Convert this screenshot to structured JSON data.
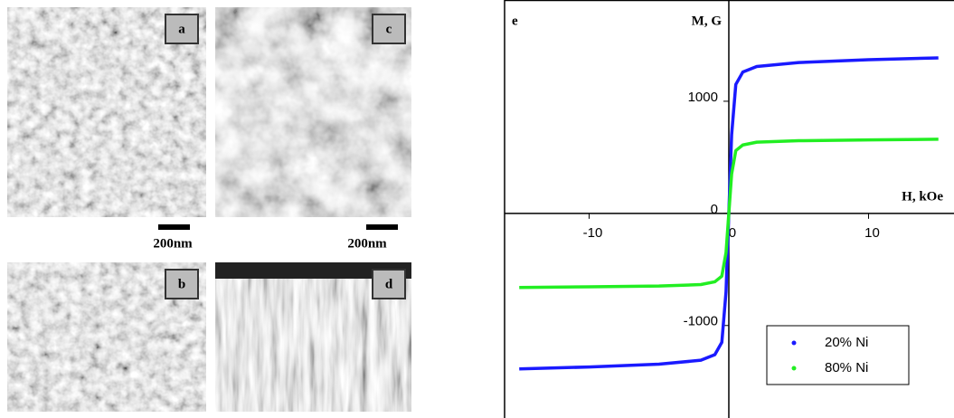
{
  "panels": [
    {
      "label": "a",
      "scale_bar": "200nm"
    },
    {
      "label": "b"
    },
    {
      "label": "c",
      "scale_bar": "200nm"
    },
    {
      "label": "d"
    }
  ],
  "chart_data": {
    "type": "line",
    "annotation": "e",
    "xlabel": "H, kOe",
    "ylabel": "M, G",
    "x": [
      -15,
      -10,
      -5,
      -2,
      -1,
      -0.5,
      -0.2,
      0,
      0.2,
      0.5,
      1,
      2,
      5,
      10,
      15
    ],
    "series": [
      {
        "name": "20% Ni",
        "color": "#1a1aff",
        "values": [
          -1387,
          -1370,
          -1345,
          -1310,
          -1260,
          -1150,
          -700,
          0,
          700,
          1150,
          1260,
          1310,
          1345,
          1370,
          1387
        ]
      },
      {
        "name": "80% Ni",
        "color": "#22ee22",
        "values": [
          -661,
          -655,
          -648,
          -635,
          -610,
          -560,
          -350,
          0,
          350,
          560,
          610,
          635,
          648,
          655,
          661
        ]
      }
    ],
    "xlim": [
      -16.05,
      15.47
    ],
    "ylim": [
      -1825,
      1903
    ],
    "xticks": [
      -10,
      0,
      10
    ],
    "yticks": [
      -1000,
      0,
      1000
    ],
    "legend": "lower right"
  }
}
